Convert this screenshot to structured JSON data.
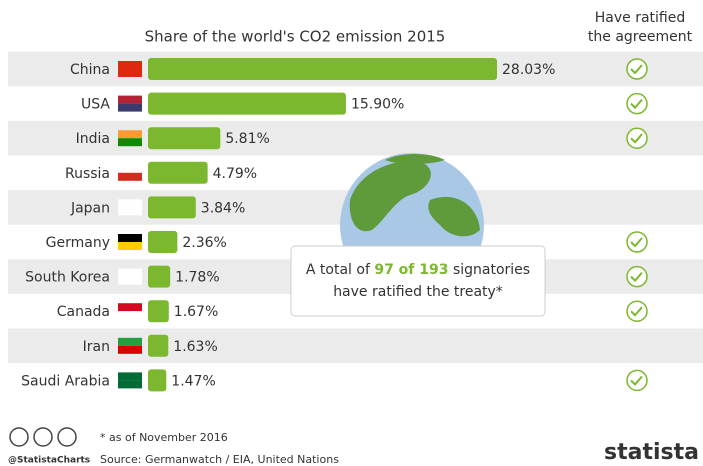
{
  "chart_data": {
    "type": "bar",
    "orientation": "horizontal",
    "title": "Share of the world's CO2 emission 2015",
    "column_header": [
      "Have ratified",
      "the agreement"
    ],
    "categories": [
      "China",
      "USA",
      "India",
      "Russia",
      "Japan",
      "Germany",
      "South Korea",
      "Canada",
      "Iran",
      "Saudi Arabia"
    ],
    "values": [
      28.03,
      15.9,
      5.81,
      4.79,
      3.84,
      2.36,
      1.78,
      1.67,
      1.63,
      1.47
    ],
    "value_labels": [
      "28.03%",
      "15.90%",
      "5.81%",
      "4.79%",
      "3.84%",
      "2.36%",
      "1.78%",
      "1.67%",
      "1.63%",
      "1.47%"
    ],
    "ratified": [
      true,
      true,
      true,
      false,
      false,
      true,
      true,
      true,
      false,
      true
    ],
    "color": "#7cb82f",
    "check_color": "#7cb82f",
    "annotation": {
      "before": "A total of ",
      "highlight": "97 of 193",
      "after": " signatories",
      "line2": "have ratified the treaty*"
    },
    "footnote": "* as of November 2016",
    "handle": "@StatistaCharts",
    "source": "Source: Germanwatch / EIA, United Nations",
    "brand": "statista"
  }
}
